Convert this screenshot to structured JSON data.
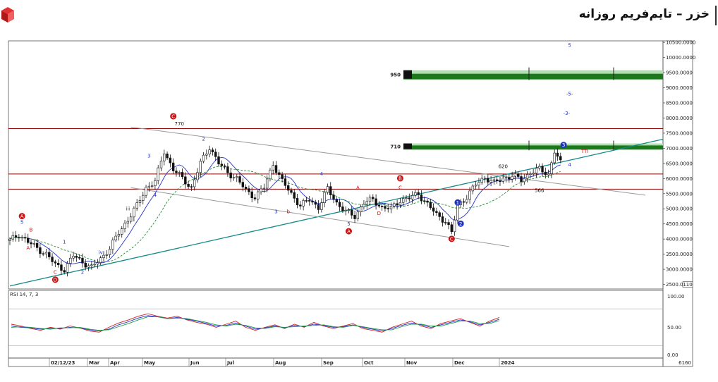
{
  "header": {
    "title": "خزر – تایم‌فریم روزانه",
    "logo_icon": "red-cube-logo-icon"
  },
  "colors": {
    "price": "#111111",
    "ma_fast": "#2233cc",
    "ma_slow": "#228833",
    "trend_up": "#148a8a",
    "channel": "#999999",
    "level": "#8b0000",
    "target_zone": "#1a7a1a",
    "target_zone_light": "#b5dcb5",
    "annotation_red": "#cc1111",
    "annotation_blue": "#2233bb",
    "rsi_a": "#cc2222",
    "rsi_b": "#2233cc",
    "rsi_c": "#229944"
  },
  "chart_data": [
    {
      "type": "candlestick",
      "title": "",
      "y_ticks": [
        "10500.0000",
        "10000.0000",
        "9500.0000",
        "9000.0000",
        "8500.0000",
        "8000.0000",
        "7500.0000",
        "7000.0000",
        "6500.0000",
        "6000.0000",
        "5500.0000",
        "5000.0000",
        "4500.0000",
        "4000.0000",
        "3500.0000",
        "3000.0000",
        "2500.0000"
      ],
      "ylim": [
        2350,
        10550
      ],
      "x_labels": [
        "02/12/23",
        "Mar",
        "Apr",
        "May",
        "Jun",
        "Jul",
        "Aug",
        "Sep",
        "Oct",
        "Nov",
        "Dec",
        "2024"
      ],
      "last_value_label": "6160",
      "scale_badge": "110",
      "price_points": [
        {
          "t": 0,
          "v": 3950
        },
        {
          "t": 3,
          "v": 4150
        },
        {
          "t": 6,
          "v": 3900
        },
        {
          "t": 9,
          "v": 3700
        },
        {
          "t": 12,
          "v": 3500
        },
        {
          "t": 15,
          "v": 3150
        },
        {
          "t": 18,
          "v": 3000
        },
        {
          "t": 21,
          "v": 3450
        },
        {
          "t": 24,
          "v": 3250
        },
        {
          "t": 27,
          "v": 3050
        },
        {
          "t": 30,
          "v": 3350
        },
        {
          "t": 33,
          "v": 3700
        },
        {
          "t": 36,
          "v": 4200
        },
        {
          "t": 39,
          "v": 4650
        },
        {
          "t": 42,
          "v": 5100
        },
        {
          "t": 45,
          "v": 5700
        },
        {
          "t": 48,
          "v": 5900
        },
        {
          "t": 51,
          "v": 6900
        },
        {
          "t": 54,
          "v": 6300
        },
        {
          "t": 57,
          "v": 6000
        },
        {
          "t": 60,
          "v": 5700
        },
        {
          "t": 63,
          "v": 6500
        },
        {
          "t": 66,
          "v": 7050
        },
        {
          "t": 69,
          "v": 6500
        },
        {
          "t": 72,
          "v": 6200
        },
        {
          "t": 75,
          "v": 6000
        },
        {
          "t": 78,
          "v": 5600
        },
        {
          "t": 81,
          "v": 5400
        },
        {
          "t": 84,
          "v": 5700
        },
        {
          "t": 87,
          "v": 6500
        },
        {
          "t": 90,
          "v": 5900
        },
        {
          "t": 93,
          "v": 5500
        },
        {
          "t": 96,
          "v": 5100
        },
        {
          "t": 99,
          "v": 5300
        },
        {
          "t": 102,
          "v": 5050
        },
        {
          "t": 105,
          "v": 5650
        },
        {
          "t": 108,
          "v": 5200
        },
        {
          "t": 111,
          "v": 4900
        },
        {
          "t": 114,
          "v": 4750
        },
        {
          "t": 117,
          "v": 5200
        },
        {
          "t": 120,
          "v": 5300
        },
        {
          "t": 123,
          "v": 5050
        },
        {
          "t": 126,
          "v": 5000
        },
        {
          "t": 129,
          "v": 5300
        },
        {
          "t": 132,
          "v": 5350
        },
        {
          "t": 135,
          "v": 5500
        },
        {
          "t": 138,
          "v": 5150
        },
        {
          "t": 141,
          "v": 4800
        },
        {
          "t": 144,
          "v": 4600
        },
        {
          "t": 146,
          "v": 4200
        },
        {
          "t": 148,
          "v": 5100
        },
        {
          "t": 151,
          "v": 5400
        },
        {
          "t": 154,
          "v": 5800
        },
        {
          "t": 157,
          "v": 6050
        },
        {
          "t": 160,
          "v": 5850
        },
        {
          "t": 163,
          "v": 6000
        },
        {
          "t": 166,
          "v": 6100
        },
        {
          "t": 169,
          "v": 5950
        },
        {
          "t": 172,
          "v": 6200
        },
        {
          "t": 175,
          "v": 6300
        },
        {
          "t": 178,
          "v": 6150
        },
        {
          "t": 180,
          "v": 6900
        },
        {
          "t": 182,
          "v": 6500
        }
      ],
      "levels": [
        {
          "name": "level-7650",
          "value": 7650,
          "label": ""
        },
        {
          "name": "level-6150",
          "value": 6150,
          "label": ""
        },
        {
          "name": "level-5650",
          "value": 5650,
          "label": ""
        }
      ],
      "target_zones": [
        {
          "name": "target-950",
          "label": "950",
          "from": 9300,
          "to": 9580
        },
        {
          "name": "target-710",
          "label": "710",
          "from": 6980,
          "to": 7160
        }
      ],
      "trendlines": [
        {
          "name": "rising-trendline",
          "from": {
            "t": 0,
            "v": 2450
          },
          "to": {
            "t": 240,
            "v": 7300
          },
          "kind": "trend_up"
        },
        {
          "name": "channel-upper",
          "from": {
            "t": 40,
            "v": 7700
          },
          "to": {
            "t": 210,
            "v": 5450
          },
          "kind": "channel"
        },
        {
          "name": "channel-lower",
          "from": {
            "t": 40,
            "v": 5700
          },
          "to": {
            "t": 165,
            "v": 3750
          },
          "kind": "channel"
        }
      ],
      "annotations": [
        {
          "text": "A",
          "t": 4,
          "v": 4700,
          "color": "annotation_red",
          "circle": true
        },
        {
          "text": "5",
          "t": 4,
          "v": 4500,
          "color": "annotation_blue"
        },
        {
          "text": "B",
          "t": 7,
          "v": 4250,
          "color": "annotation_red"
        },
        {
          "text": "A",
          "t": 6,
          "v": 3650,
          "color": "annotation_red"
        },
        {
          "text": "1",
          "t": 18,
          "v": 3850,
          "color": "annotation_blue"
        },
        {
          "text": "C",
          "t": 15,
          "v": 2850,
          "color": "annotation_red"
        },
        {
          "text": "D",
          "t": 15,
          "v": 2600,
          "color": "annotation_red",
          "circle": true
        },
        {
          "text": "2",
          "t": 24,
          "v": 2850,
          "color": "annotation_blue"
        },
        {
          "text": "iv",
          "t": 30,
          "v": 3500,
          "color": "annotation_blue"
        },
        {
          "text": "iii",
          "t": 39,
          "v": 4950,
          "color": "annotation_blue"
        },
        {
          "text": "3",
          "t": 46,
          "v": 6700,
          "color": "annotation_blue"
        },
        {
          "text": "4",
          "t": 48,
          "v": 5400,
          "color": "annotation_blue"
        },
        {
          "text": "C",
          "t": 54,
          "v": 8000,
          "color": "annotation_red",
          "circle": true
        },
        {
          "text": "770",
          "t": 56,
          "v": 7750,
          "color": "price"
        },
        {
          "text": "2",
          "t": 64,
          "v": 7250,
          "color": "annotation_blue"
        },
        {
          "text": "3",
          "t": 88,
          "v": 4850,
          "color": "annotation_blue"
        },
        {
          "text": "b",
          "t": 92,
          "v": 4850,
          "color": "annotation_red"
        },
        {
          "text": "4",
          "t": 103,
          "v": 6100,
          "color": "annotation_blue"
        },
        {
          "text": "5",
          "t": 112,
          "v": 4450,
          "color": "annotation_blue"
        },
        {
          "text": "A",
          "t": 112,
          "v": 4200,
          "color": "annotation_red",
          "circle": true
        },
        {
          "text": "A",
          "t": 115,
          "v": 5650,
          "color": "annotation_red"
        },
        {
          "text": "D",
          "t": 122,
          "v": 4800,
          "color": "annotation_red"
        },
        {
          "text": "B",
          "t": 129,
          "v": 5950,
          "color": "annotation_red",
          "circle": true
        },
        {
          "text": "C",
          "t": 129,
          "v": 5650,
          "color": "annotation_red"
        },
        {
          "text": "1",
          "t": 148,
          "v": 5150,
          "color": "annotation_blue",
          "circle": true
        },
        {
          "text": "2",
          "t": 149,
          "v": 4450,
          "color": "annotation_blue",
          "circle": true
        },
        {
          "text": "C",
          "t": 146,
          "v": 3950,
          "color": "annotation_red",
          "circle": true
        },
        {
          "text": "620",
          "t": 163,
          "v": 6350,
          "color": "price"
        },
        {
          "text": "566",
          "t": 175,
          "v": 5550,
          "color": "price"
        },
        {
          "text": "3",
          "t": 183,
          "v": 7050,
          "color": "annotation_blue",
          "circle": true
        },
        {
          "text": "TTI",
          "t": 190,
          "v": 6850,
          "color": "annotation_red"
        },
        {
          "text": "4",
          "t": 185,
          "v": 6400,
          "color": "annotation_blue"
        },
        {
          "text": "5",
          "t": 185,
          "v": 10350,
          "color": "annotation_blue"
        },
        {
          "text": "-5-",
          "t": 185,
          "v": 8750,
          "color": "annotation_blue"
        },
        {
          "text": "-3-",
          "t": 184,
          "v": 8100,
          "color": "annotation_blue"
        }
      ]
    },
    {
      "type": "line",
      "title": "RSI 14, 7, 3",
      "y_ticks": [
        "100.00",
        "50.00",
        "0.00"
      ],
      "ylim": [
        0,
        110
      ],
      "series": [
        {
          "values": [
            55,
            52,
            48,
            45,
            50,
            47,
            52,
            49,
            44,
            42,
            50,
            57,
            62,
            68,
            72,
            68,
            65,
            68,
            62,
            58,
            55,
            50,
            55,
            60,
            50,
            45,
            50,
            54,
            48,
            55,
            50,
            58,
            52,
            48,
            52,
            56,
            48,
            45,
            42,
            50,
            55,
            60,
            52,
            48,
            56,
            60,
            64,
            58,
            52,
            60,
            66
          ]
        },
        {
          "values": [
            52,
            50,
            49,
            47,
            48,
            48,
            50,
            49,
            46,
            44,
            47,
            54,
            59,
            65,
            69,
            67,
            64,
            66,
            63,
            60,
            56,
            52,
            53,
            57,
            52,
            47,
            49,
            52,
            49,
            53,
            51,
            55,
            53,
            50,
            51,
            54,
            50,
            47,
            44,
            48,
            53,
            57,
            54,
            50,
            54,
            58,
            62,
            59,
            54,
            58,
            63
          ]
        },
        {
          "values": [
            50,
            51,
            50,
            48,
            47,
            49,
            49,
            50,
            47,
            45,
            46,
            51,
            56,
            62,
            67,
            67,
            64,
            65,
            64,
            61,
            58,
            54,
            52,
            55,
            53,
            49,
            48,
            51,
            50,
            51,
            52,
            53,
            54,
            51,
            50,
            53,
            51,
            48,
            46,
            46,
            51,
            55,
            55,
            52,
            52,
            56,
            60,
            60,
            56,
            56,
            61
          ]
        }
      ]
    }
  ]
}
